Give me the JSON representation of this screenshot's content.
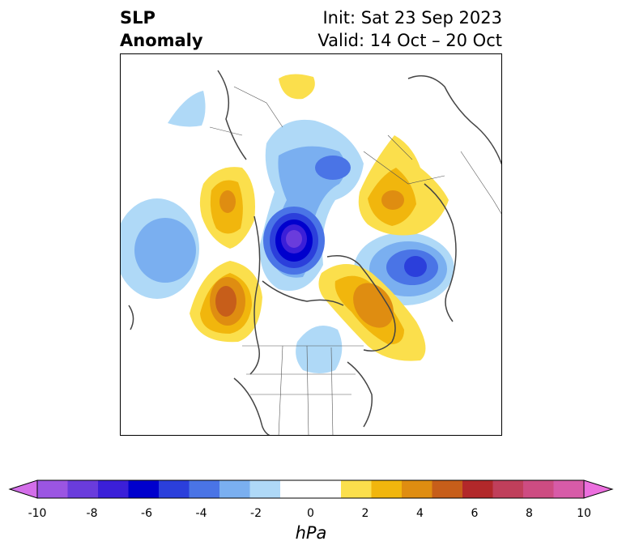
{
  "header": {
    "title_line1": "SLP",
    "title_line2": "Anomaly",
    "init_text": "Init: Sat 23 Sep 2023",
    "valid_text": "Valid: 14 Oct – 20 Oct"
  },
  "map": {
    "projection": "north-polar-stereographic",
    "features": [
      "coastlines",
      "country-borders",
      "us-state-borders"
    ]
  },
  "colorbar": {
    "unit": "hPa",
    "range": [
      -10,
      10
    ],
    "extend": "both",
    "tick_labels": [
      "-10",
      "-8",
      "-6",
      "-4",
      "-2",
      "0",
      "2",
      "4",
      "6",
      "8",
      "10"
    ],
    "colors": [
      "#d36ee9",
      "#9b55e2",
      "#6a3cdc",
      "#3b1fd8",
      "#0000cd",
      "#2b3fdb",
      "#4a74e6",
      "#7aaff0",
      "#afd9f7",
      "#ffffff",
      "#ffffff",
      "#fbdf4c",
      "#f1b60d",
      "#df8d11",
      "#c75e1a",
      "#b2282a",
      "#c03f5b",
      "#cd4c82",
      "#d75ba8",
      "#ec6fde"
    ]
  }
}
